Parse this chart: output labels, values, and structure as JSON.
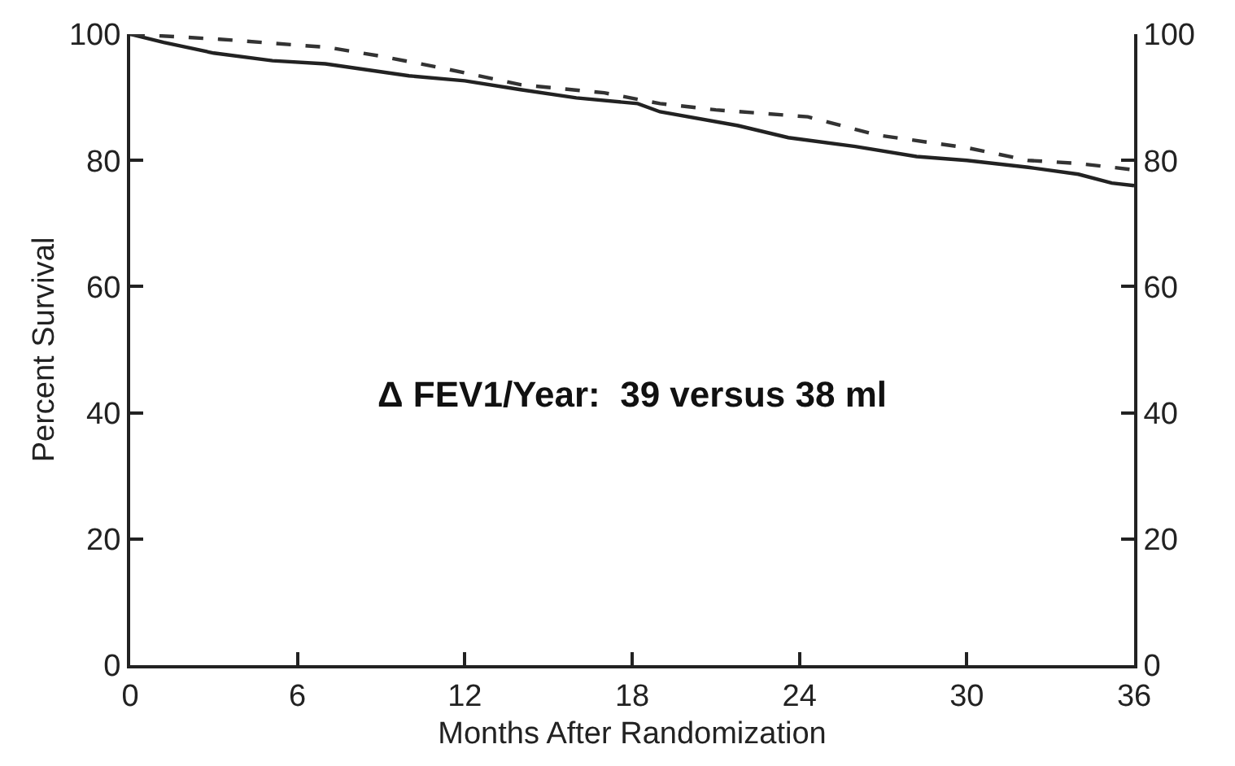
{
  "chart_data": {
    "type": "line",
    "xlabel": "Months After Randomization",
    "ylabel": "Percent Survival",
    "annotations": [
      "Δ FEV1/Year:  39 versus 38 ml"
    ],
    "xlim": [
      0,
      36
    ],
    "xticks": [
      0,
      6,
      12,
      18,
      24,
      30,
      36
    ],
    "ylim": [
      0,
      100
    ],
    "yticks": [
      0,
      20,
      40,
      60,
      80,
      100
    ],
    "y2lim": [
      0,
      100
    ],
    "y2ticks": [
      0,
      20,
      40,
      60,
      80,
      100
    ],
    "series": [
      {
        "color": "#222222",
        "line_style": "solid",
        "x": [
          0,
          1.2,
          3,
          5.1,
          7,
          10,
          12,
          14,
          16,
          18.2,
          19,
          21.8,
          23.6,
          26,
          28.2,
          30,
          32.2,
          34,
          35.2,
          36
        ],
        "values": [
          100,
          98.7,
          97,
          95.8,
          95.3,
          93.4,
          92.6,
          91.2,
          89.9,
          89,
          87.7,
          85.5,
          83.6,
          82.2,
          80.6,
          80,
          78.9,
          77.8,
          76.4,
          76
        ]
      },
      {
        "color": "#333333",
        "line_style": "dashed",
        "x": [
          0,
          3.2,
          7.1,
          9,
          11.1,
          14,
          17,
          19,
          21,
          24.3,
          26.8,
          30,
          32.2,
          34,
          36
        ],
        "values": [
          100,
          99.2,
          97.9,
          96.5,
          94.7,
          92,
          90.7,
          89,
          88,
          86.9,
          84,
          82,
          80,
          79.5,
          78.5
        ]
      }
    ]
  }
}
